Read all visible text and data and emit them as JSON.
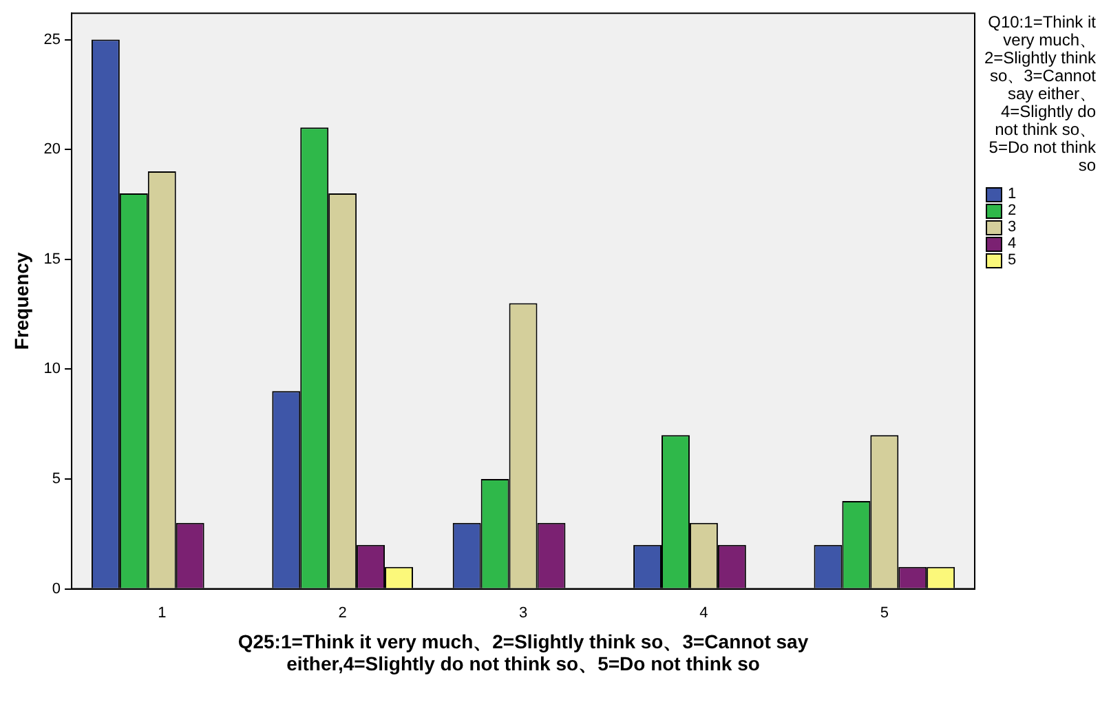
{
  "chart_data": {
    "type": "bar",
    "categories": [
      "1",
      "2",
      "3",
      "4",
      "5"
    ],
    "series": [
      {
        "name": "1",
        "color": "#3e56a8",
        "values": [
          25,
          9,
          3,
          2,
          2
        ]
      },
      {
        "name": "2",
        "color": "#2fb84a",
        "values": [
          18,
          21,
          5,
          7,
          4
        ]
      },
      {
        "name": "3",
        "color": "#d4cf9b",
        "values": [
          19,
          18,
          13,
          3,
          7
        ]
      },
      {
        "name": "4",
        "color": "#7b2172",
        "values": [
          3,
          2,
          3,
          2,
          1
        ]
      },
      {
        "name": "5",
        "color": "#fbf87a",
        "values": [
          null,
          1,
          null,
          null,
          1
        ]
      }
    ],
    "xlabel": "Q25:1=Think it very much、2=Slightly think so、3=Cannot say either,4=Slightly do not think so、5=Do not think so",
    "ylabel": "Frequency",
    "legend_title": "Q10:1=Think it very much、2=Slightly think so、3=Cannot say either、4=Slightly do not think so、5=Do not think so",
    "ylim": [
      0,
      26.2
    ],
    "yticks": [
      0,
      5,
      10,
      15,
      20,
      25
    ],
    "grid": false,
    "legend": "right"
  }
}
